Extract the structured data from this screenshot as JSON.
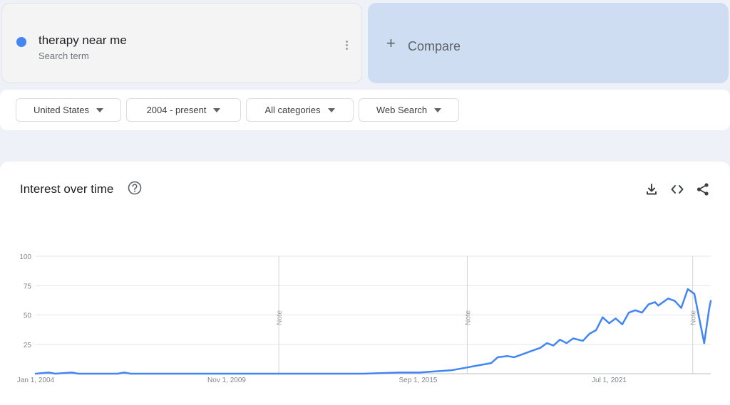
{
  "search_term": {
    "name": "therapy near me",
    "subtitle": "Search term",
    "color": "#4285f4"
  },
  "compare": {
    "plus": "+",
    "label": "Compare"
  },
  "filters": [
    {
      "label": "United States"
    },
    {
      "label": "2004 - present"
    },
    {
      "label": "All categories"
    },
    {
      "label": "Web Search"
    }
  ],
  "chart_header": {
    "title": "Interest over time",
    "icons": [
      "help-icon",
      "download-icon",
      "embed-icon",
      "share-icon"
    ]
  },
  "chart_data": {
    "type": "line",
    "title": "Interest over time",
    "xlabel": "",
    "ylabel": "",
    "ylim": [
      0,
      100
    ],
    "y_ticks": [
      25,
      50,
      75,
      100
    ],
    "x_ticks": [
      "Jan 1, 2004",
      "Nov 1, 2009",
      "Sep 1, 2015",
      "Jul 1, 2021"
    ],
    "x_tick_years": [
      2004.0,
      2009.83,
      2015.67,
      2021.5
    ],
    "xlim": [
      2004.0,
      2024.6
    ],
    "notes": [
      {
        "x": 2011.42,
        "label": "Note"
      },
      {
        "x": 2017.17,
        "label": "Note"
      },
      {
        "x": 2024.05,
        "label": "Note"
      }
    ],
    "grid": true,
    "legend": "none",
    "series": [
      {
        "color": "#4285f4",
        "points": [
          [
            2004.0,
            0
          ],
          [
            2004.4,
            1
          ],
          [
            2004.6,
            0
          ],
          [
            2005.1,
            1
          ],
          [
            2005.3,
            0
          ],
          [
            2006.5,
            0
          ],
          [
            2006.7,
            1
          ],
          [
            2006.9,
            0
          ],
          [
            2010.0,
            0
          ],
          [
            2014.0,
            0
          ],
          [
            2015.1,
            1
          ],
          [
            2015.7,
            1
          ],
          [
            2016.2,
            2
          ],
          [
            2016.7,
            3
          ],
          [
            2017.1,
            5
          ],
          [
            2017.5,
            7
          ],
          [
            2017.9,
            9
          ],
          [
            2018.1,
            14
          ],
          [
            2018.4,
            15
          ],
          [
            2018.6,
            14
          ],
          [
            2018.9,
            17
          ],
          [
            2019.1,
            19
          ],
          [
            2019.4,
            22
          ],
          [
            2019.6,
            26
          ],
          [
            2019.8,
            24
          ],
          [
            2020.0,
            29
          ],
          [
            2020.2,
            26
          ],
          [
            2020.4,
            30
          ],
          [
            2020.7,
            28
          ],
          [
            2020.9,
            34
          ],
          [
            2021.1,
            37
          ],
          [
            2021.3,
            48
          ],
          [
            2021.5,
            43
          ],
          [
            2021.7,
            47
          ],
          [
            2021.9,
            42
          ],
          [
            2022.1,
            52
          ],
          [
            2022.3,
            54
          ],
          [
            2022.5,
            52
          ],
          [
            2022.7,
            59
          ],
          [
            2022.9,
            61
          ],
          [
            2023.0,
            58
          ],
          [
            2023.3,
            64
          ],
          [
            2023.5,
            62
          ],
          [
            2023.7,
            56
          ],
          [
            2023.9,
            72
          ],
          [
            2024.1,
            68
          ],
          [
            2024.4,
            26
          ],
          [
            2024.55,
            55
          ],
          [
            2024.6,
            62
          ]
        ]
      }
    ]
  }
}
